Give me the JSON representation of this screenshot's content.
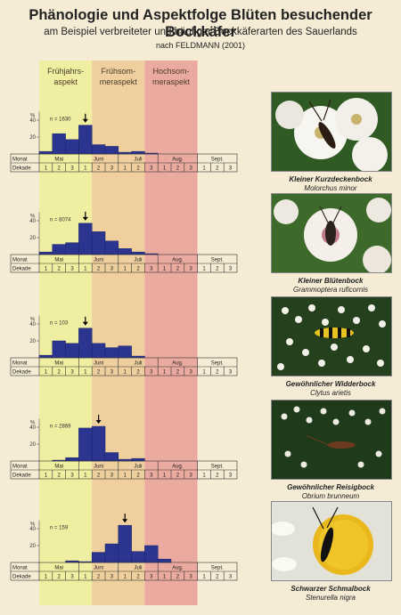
{
  "header": {
    "title": "Phänologie und Aspektfolge Blüten besuchender Bockkäfer",
    "subtitle": "am Beispiel verbreiteter und häufiger Bockkäferarten des Sauerlands",
    "source": "nach FELDMANN (2001)"
  },
  "aspects": [
    {
      "line1": "Frühjahrs-",
      "line2": "aspekt",
      "from": 0,
      "to": 4,
      "color": "#f0eea0"
    },
    {
      "line1": "Frühsom-",
      "line2": "meraspekt",
      "from": 4,
      "to": 8,
      "color": "#efcf9e"
    },
    {
      "line1": "Hochsom-",
      "line2": "meraspekt",
      "from": 8,
      "to": 12,
      "color": "#ebaaa0"
    }
  ],
  "axis": {
    "month_label": "Monat",
    "decade_label": "Dekade",
    "months": [
      "Mai",
      "Juni",
      "Juli",
      "Aug.",
      "Sept."
    ],
    "decades": [
      "1",
      "2",
      "3",
      "1",
      "2",
      "3",
      "1",
      "2",
      "3",
      "1",
      "2",
      "3",
      "1",
      "2",
      "3"
    ],
    "yunit": "%",
    "yticks": [
      20,
      40
    ],
    "ymax": 50
  },
  "colors": {
    "bar": "#2b3590",
    "bar_edge": "#1a2266",
    "arrow": "#000000"
  },
  "chart_data": [
    {
      "type": "bar",
      "n_label": "n = 1630",
      "values": [
        3,
        24,
        17,
        34,
        11,
        9,
        2,
        3,
        1,
        0,
        0,
        0,
        0,
        0,
        0
      ],
      "peak_index": 3,
      "species": {
        "common": "Kleiner Kurzdeckenbock",
        "scientific": "Molorchus minor",
        "icon": "beetle-on-white-blossom-photo"
      }
    },
    {
      "type": "bar",
      "n_label": "n = 8074",
      "values": [
        3,
        12,
        14,
        37,
        27,
        16,
        7,
        3,
        1,
        0,
        0,
        0,
        0,
        0,
        0
      ],
      "peak_index": 3,
      "species": {
        "common": "Kleiner Blütenbock",
        "scientific": "Grammoptera ruficornis",
        "icon": "beetle-on-hawthorn-blossom-photo"
      }
    },
    {
      "type": "bar",
      "n_label": "n = 103",
      "values": [
        3,
        20,
        17,
        35,
        17,
        12,
        14,
        2,
        0,
        0,
        0,
        0,
        0,
        0,
        0
      ],
      "peak_index": 3,
      "species": {
        "common": "Gewöhnlicher Widderbock",
        "scientific": "Clytus arietis",
        "icon": "wasp-beetle-on-umbel-photo"
      }
    },
    {
      "type": "bar",
      "n_label": "n = 2869",
      "values": [
        0,
        1,
        4,
        39,
        41,
        10,
        2,
        3,
        0,
        0,
        0,
        0,
        0,
        0,
        0
      ],
      "peak_index": 4,
      "species": {
        "common": "Gewöhnlicher Reisigbock",
        "scientific": "Obrium brunneum",
        "icon": "brown-beetle-on-umbel-photo"
      }
    },
    {
      "type": "bar",
      "n_label": "n = 159",
      "values": [
        0,
        0,
        2,
        1,
        12,
        22,
        44,
        13,
        20,
        4,
        0,
        0,
        0,
        0,
        0
      ],
      "peak_index": 6,
      "species": {
        "common": "Schwarzer Schmalbock",
        "scientific": "Stenurella nigra",
        "icon": "black-beetle-on-daisy-photo"
      }
    }
  ]
}
